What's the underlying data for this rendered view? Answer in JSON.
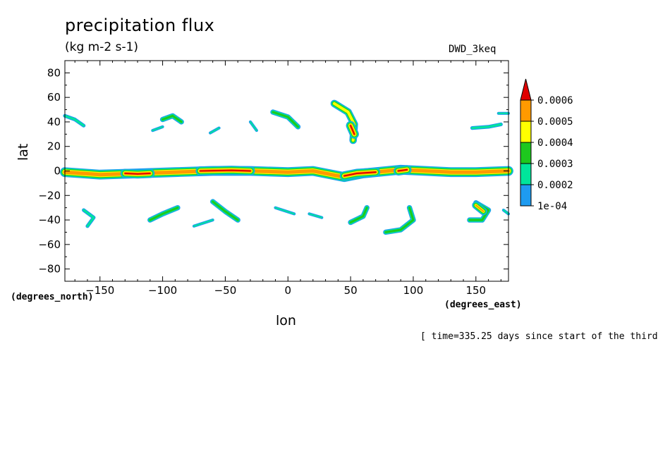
{
  "title": "precipitation flux",
  "units": "(kg m-2 s-1)",
  "model": "DWD_3keq",
  "time_info": "[ time=335.25 days since start of the third",
  "chart_data": {
    "type": "contour-map",
    "xlabel": "lon",
    "ylabel": "lat",
    "x_units": "(degrees_east)",
    "y_units": "(degrees_north)",
    "xlim": [
      -178,
      176
    ],
    "ylim": [
      -90,
      90
    ],
    "xticks": [
      -150,
      -100,
      -50,
      0,
      50,
      100,
      150
    ],
    "xtick_labels": [
      "−150",
      "−100",
      "−50",
      "0",
      "50",
      "100",
      "150"
    ],
    "yticks": [
      80,
      60,
      40,
      20,
      0,
      -20,
      -40,
      -60,
      -80
    ],
    "ytick_labels": [
      "80",
      "60",
      "40",
      "20",
      "0",
      "−20",
      "−40",
      "−60",
      "−80"
    ],
    "colorbar": {
      "levels": [
        0.0001,
        0.0002,
        0.0003,
        0.0004,
        0.0005,
        0.0006
      ],
      "labels": [
        "1e-04",
        "0.0002",
        "0.0003",
        "0.0004",
        "0.0005",
        "0.0006"
      ],
      "colors": [
        "#1e9bf0",
        "#00e59b",
        "#1ec81e",
        "#ffff00",
        "#ff9a00",
        "#e00000"
      ],
      "extend": "max"
    },
    "features": [
      {
        "points": [
          [
            -178,
            -1
          ],
          [
            -150,
            -3
          ],
          [
            -120,
            -2
          ],
          [
            -90,
            -1
          ],
          [
            -60,
            0
          ],
          [
            -30,
            0
          ],
          [
            0,
            -1
          ],
          [
            20,
            0
          ],
          [
            45,
            -5
          ],
          [
            60,
            -2
          ],
          [
            90,
            1
          ],
          [
            110,
            0
          ],
          [
            130,
            -1
          ],
          [
            150,
            -1
          ],
          [
            176,
            0
          ]
        ],
        "width": 5,
        "level": 4
      },
      {
        "points": [
          [
            -130,
            -2
          ],
          [
            -120,
            -2.5
          ],
          [
            -110,
            -2
          ]
        ],
        "width": 2,
        "level": 5
      },
      {
        "points": [
          [
            -70,
            0
          ],
          [
            -45,
            0.5
          ],
          [
            -30,
            0
          ]
        ],
        "width": 2,
        "level": 5
      },
      {
        "points": [
          [
            45,
            -4
          ],
          [
            55,
            -2
          ],
          [
            70,
            -1
          ]
        ],
        "width": 2,
        "level": 5
      },
      {
        "points": [
          [
            88,
            0
          ],
          [
            95,
            1
          ]
        ],
        "width": 2,
        "level": 5
      },
      {
        "points": [
          [
            -178,
            45
          ],
          [
            -170,
            42
          ],
          [
            -163,
            37
          ]
        ],
        "width": 3,
        "level": 1
      },
      {
        "points": [
          [
            -100,
            42
          ],
          [
            -92,
            45
          ],
          [
            -85,
            40
          ]
        ],
        "width": 3,
        "level": 2
      },
      {
        "points": [
          [
            -108,
            33
          ],
          [
            -100,
            36
          ]
        ],
        "width": 2,
        "level": 1
      },
      {
        "points": [
          [
            -62,
            31
          ],
          [
            -55,
            35
          ]
        ],
        "width": 2,
        "level": 1
      },
      {
        "points": [
          [
            -30,
            40
          ],
          [
            -25,
            33
          ]
        ],
        "width": 2,
        "level": 1
      },
      {
        "points": [
          [
            -12,
            48
          ],
          [
            0,
            44
          ],
          [
            8,
            36
          ]
        ],
        "width": 3,
        "level": 2
      },
      {
        "points": [
          [
            37,
            55
          ],
          [
            48,
            48
          ],
          [
            53,
            38
          ],
          [
            52,
            25
          ]
        ],
        "width": 4,
        "level": 3
      },
      {
        "points": [
          [
            50,
            37
          ],
          [
            53,
            30
          ]
        ],
        "width": 2,
        "level": 5
      },
      {
        "points": [
          [
            147,
            35
          ],
          [
            160,
            36
          ],
          [
            170,
            38
          ]
        ],
        "width": 3,
        "level": 1
      },
      {
        "points": [
          [
            168,
            47
          ],
          [
            176,
            47
          ]
        ],
        "width": 2,
        "level": 1
      },
      {
        "points": [
          [
            -163,
            -32
          ],
          [
            -155,
            -38
          ],
          [
            -160,
            -45
          ]
        ],
        "width": 3,
        "level": 1
      },
      {
        "points": [
          [
            -110,
            -40
          ],
          [
            -100,
            -35
          ],
          [
            -88,
            -30
          ]
        ],
        "width": 3,
        "level": 2
      },
      {
        "points": [
          [
            -60,
            -25
          ],
          [
            -50,
            -33
          ],
          [
            -40,
            -40
          ]
        ],
        "width": 3,
        "level": 2
      },
      {
        "points": [
          [
            -75,
            -45
          ],
          [
            -60,
            -40
          ]
        ],
        "width": 2,
        "level": 1
      },
      {
        "points": [
          [
            -10,
            -30
          ],
          [
            5,
            -35
          ]
        ],
        "width": 2,
        "level": 1
      },
      {
        "points": [
          [
            17,
            -35
          ],
          [
            27,
            -38
          ]
        ],
        "width": 2,
        "level": 1
      },
      {
        "points": [
          [
            50,
            -42
          ],
          [
            60,
            -37
          ],
          [
            63,
            -30
          ]
        ],
        "width": 3,
        "level": 2
      },
      {
        "points": [
          [
            97,
            -30
          ],
          [
            100,
            -40
          ],
          [
            90,
            -48
          ],
          [
            78,
            -50
          ]
        ],
        "width": 3,
        "level": 2
      },
      {
        "points": [
          [
            145,
            -40
          ],
          [
            155,
            -40
          ],
          [
            160,
            -32
          ],
          [
            150,
            -26
          ]
        ],
        "width": 3,
        "level": 2
      },
      {
        "points": [
          [
            150,
            -28
          ],
          [
            156,
            -33
          ]
        ],
        "width": 2,
        "level": 4
      },
      {
        "points": [
          [
            172,
            -32
          ],
          [
            176,
            -35
          ]
        ],
        "width": 2,
        "level": 1
      }
    ]
  }
}
